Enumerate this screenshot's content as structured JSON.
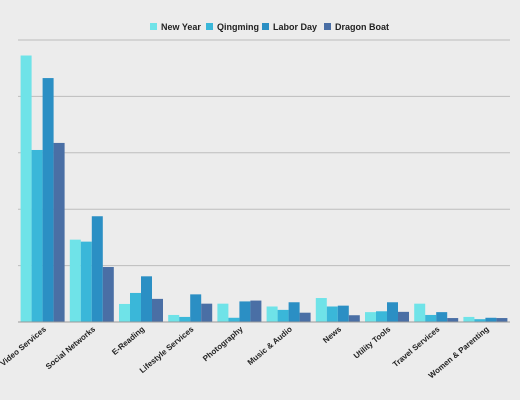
{
  "chart_data": {
    "type": "bar",
    "title": "",
    "xlabel": "",
    "ylabel": "",
    "categories": [
      "Video Services",
      "Social Networks",
      "E-Reading",
      "Lifestyle Services",
      "Photography",
      "Music & Audio",
      "News",
      "Utility Tools",
      "Travel Services",
      "Women & Parenting"
    ],
    "series": [
      {
        "name": "New Year",
        "color": "#6fe3e8",
        "values": [
          94.5,
          29.2,
          6.4,
          2.5,
          6.5,
          5.5,
          8.5,
          3.5,
          6.5,
          1.8
        ]
      },
      {
        "name": "Qingming",
        "color": "#3ab7d9",
        "values": [
          61,
          28.5,
          10.3,
          1.8,
          1.5,
          4.3,
          5.5,
          3.8,
          2.5,
          1
        ]
      },
      {
        "name": "Labor Day",
        "color": "#2b8fc4",
        "values": [
          86.5,
          37.5,
          16.2,
          9.8,
          7.3,
          7,
          5.8,
          7,
          3.5,
          1.5
        ]
      },
      {
        "name": "Dragon Boat",
        "color": "#4a6fa5",
        "values": [
          63.5,
          19.5,
          8.2,
          6.5,
          7.6,
          3.3,
          2.4,
          3.6,
          1.4,
          1.4
        ]
      }
    ],
    "ylim": [
      0,
      100
    ],
    "y_gridlines": [
      20,
      40,
      60,
      80,
      100
    ],
    "grid": true,
    "show_y_tick_labels": false,
    "legend_position": "top-center"
  }
}
